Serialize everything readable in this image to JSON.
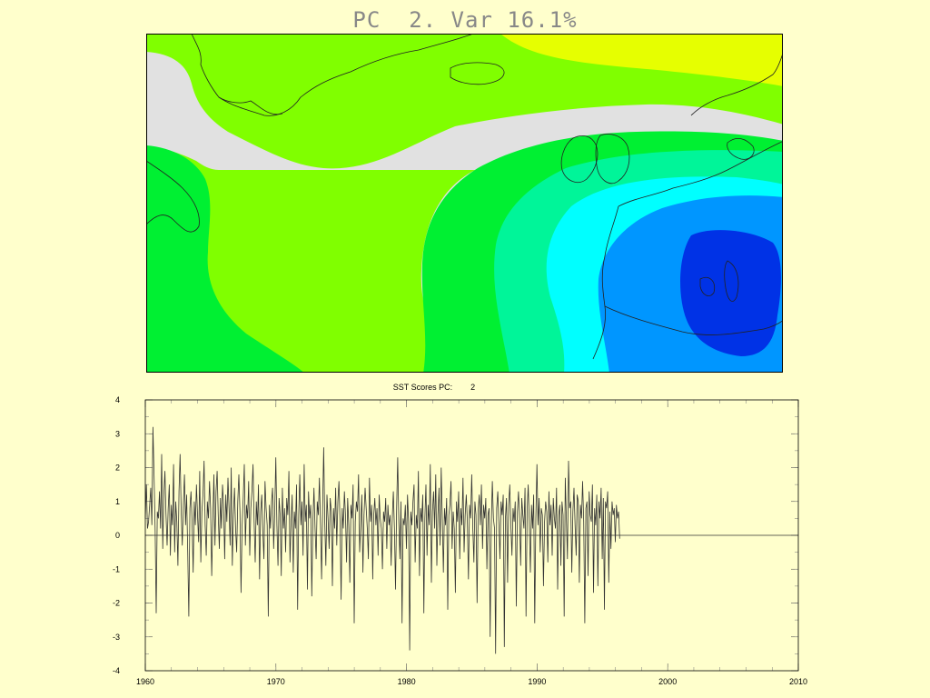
{
  "map": {
    "title": "PC  2. Var 16.1%",
    "colors": {
      "yellow": "#e6ff00",
      "lightgreen": "#80ff00",
      "grey": "#e1e1e1",
      "green": "#00f032",
      "teal": "#00f599",
      "cyan": "#00ffff",
      "blue": "#0096ff",
      "darkblue": "#0032e6",
      "coast": "#222222"
    }
  },
  "timeseries": {
    "title": "SST Scores PC:",
    "pc_number": "2"
  },
  "chart_data": {
    "type": "line",
    "title": "SST Scores PC:        2",
    "xlabel": "",
    "ylabel": "",
    "xlim": [
      1960,
      2010
    ],
    "ylim": [
      -4,
      4
    ],
    "x_ticks": [
      1960,
      1970,
      1980,
      1990,
      2000,
      2010
    ],
    "y_ticks": [
      4,
      3,
      2,
      1,
      0,
      -1,
      -2,
      -3,
      -4
    ],
    "grid": false,
    "zero_line": true,
    "series": [
      {
        "x_start": 1960.0,
        "x_step": 0.0833,
        "values": [
          0.5,
          1.5,
          0.2,
          0.4,
          0.9,
          1.4,
          0.3,
          3.2,
          1.8,
          0.2,
          -2.3,
          0.7,
          0.5,
          1.3,
          0.2,
          2.4,
          -0.4,
          1.2,
          1.9,
          0.6,
          -0.3,
          0.8,
          1.5,
          -0.6,
          0.9,
          0.3,
          2.1,
          -0.5,
          1.0,
          0.4,
          -0.9,
          1.3,
          2.4,
          0.7,
          -0.3,
          0.9,
          1.8,
          0.3,
          1.2,
          -0.5,
          -2.4,
          0.8,
          1.3,
          0.4,
          -1.1,
          1.0,
          0.3,
          1.5,
          0.6,
          -0.2,
          1.9,
          -0.8,
          0.7,
          1.2,
          2.2,
          0.3,
          -0.6,
          1.0,
          0.5,
          1.6,
          0.8,
          -1.2,
          0.4,
          1.8,
          -0.3,
          1.3,
          1.9,
          0.6,
          -0.4,
          1.1,
          0.2,
          1.5,
          0.9,
          -0.7,
          1.2,
          0.4,
          1.7,
          0.8,
          -0.3,
          2.0,
          -0.9,
          0.6,
          1.4,
          0.2,
          -0.5,
          1.0,
          1.8,
          0.7,
          -1.7,
          0.3,
          1.1,
          2.1,
          -0.3,
          0.9,
          0.5,
          1.6,
          -0.6,
          0.8,
          1.3,
          2.1,
          0.4,
          -0.8,
          1.0,
          0.3,
          1.5,
          -1.3,
          0.7,
          1.2,
          0.1,
          -0.7,
          1.6,
          0.8,
          0.3,
          -2.4,
          0.9,
          0.2,
          1.0,
          1.4,
          -0.4,
          0.7,
          2.3,
          0.3,
          -0.9,
          1.1,
          0.6,
          -1.2,
          1.4,
          0.2,
          0.8,
          -0.5,
          1.1,
          0.6,
          1.9,
          -0.8,
          0.4,
          1.2,
          -1.1,
          0.7,
          0.2,
          1.5,
          -2.2,
          0.6,
          1.8,
          0.3,
          1.0,
          -0.6,
          2.1,
          0.4,
          0.9,
          -1.6,
          1.3,
          0.5,
          0.9,
          -1.8,
          0.4,
          1.4,
          0.2,
          -0.7,
          1.0,
          0.6,
          1.7,
          0.3,
          -1.3,
          0.9,
          2.6,
          0.4,
          -0.9,
          1.2,
          0.5,
          -0.4,
          1.1,
          0.7,
          -1.5,
          0.8,
          0.2,
          1.4,
          -0.3,
          1.0,
          1.6,
          0.4,
          -1.9,
          0.8,
          0.2,
          1.3,
          0.6,
          -0.8,
          1.1,
          0.3,
          -1.4,
          0.9,
          0.5,
          1.5,
          -2.6,
          0.4,
          1.0,
          0.7,
          1.8,
          -0.5,
          0.3,
          1.2,
          -1.1,
          0.6,
          1.4,
          0.8,
          0.2,
          -0.7,
          1.7,
          0.4,
          0.9,
          -1.3,
          0.6,
          1.1,
          0.3,
          0.8,
          -0.6,
          1.2,
          0.5,
          0.2,
          -1.0,
          0.7,
          0.4,
          1.1,
          -0.4,
          0.9,
          0.3,
          0.6,
          -0.9,
          0.5,
          1.3,
          0.2,
          -1.6,
          0.8,
          2.3,
          0.4,
          -0.7,
          1.0,
          -2.6,
          0.5,
          0.3,
          0.9,
          -0.4,
          1.2,
          0.4,
          -3.4,
          0.7,
          0.3,
          1.0,
          1.5,
          -0.8,
          0.6,
          0.2,
          1.9,
          -1.2,
          0.8,
          0.4,
          1.2,
          -2.3,
          0.5,
          1.5,
          -0.6,
          0.9,
          0.3,
          2.1,
          -1.4,
          0.7,
          1.3,
          0.2,
          1.8,
          -0.9,
          0.6,
          1.4,
          -0.3,
          2.0,
          0.5,
          -1.1,
          0.8,
          0.3,
          1.1,
          -2.2,
          0.6,
          0.9,
          1.6,
          -0.4,
          0.7,
          0.2,
          -1.7,
          1.0,
          0.4,
          1.3,
          -0.7,
          0.8,
          0.3,
          1.7,
          -0.5,
          0.6,
          1.2,
          0.4,
          -1.3,
          0.9,
          0.5,
          1.8,
          0.2,
          -0.8,
          1.0,
          0.6,
          -2.0,
          0.7,
          1.2,
          0.3,
          1.5,
          -0.4,
          0.9,
          0.5,
          1.1,
          -1.0,
          0.6,
          0.8,
          -3.0,
          0.3,
          1.6,
          0.5,
          0.2,
          -3.5,
          0.8,
          1.3,
          0.4,
          -0.7,
          1.0,
          0.6,
          1.2,
          -3.3,
          0.5,
          1.1,
          -1.4,
          0.9,
          1.5,
          0.3,
          -0.6,
          0.8,
          0.4,
          1.0,
          -2.1,
          0.7,
          1.3,
          0.5,
          -0.9,
          1.1,
          0.6,
          0.2,
          1.4,
          -2.4,
          0.7,
          1.5,
          0.4,
          -1.1,
          0.9,
          0.2,
          1.2,
          -2.6,
          0.5,
          2.1,
          0.3,
          1.1,
          -0.5,
          0.8,
          0.6,
          -1.5,
          0.4,
          1.0,
          0.7,
          -0.8,
          1.3,
          0.3,
          0.9,
          -0.6,
          1.1,
          0.5,
          0.2,
          1.4,
          -1.6,
          0.6,
          0.9,
          -0.9,
          1.0,
          0.6,
          -2.4,
          1.7,
          0.5,
          -0.7,
          2.2,
          0.8,
          1.0,
          -1.1,
          0.7,
          1.4,
          0.3,
          -0.6,
          1.2,
          1.0,
          -1.4,
          0.9,
          0.5,
          1.6,
          0.4,
          -2.6,
          0.8,
          1.0,
          -1.2,
          1.3,
          0.6,
          0.4,
          1.5,
          -1.7,
          0.8,
          0.3,
          1.2,
          -1.5,
          1.0,
          0.5,
          1.4,
          -0.7,
          1.1,
          -2.2,
          1.0,
          0.8,
          1.3,
          -1.4,
          0.7,
          -0.4,
          1.0,
          0.6,
          0.8,
          -0.2,
          0.9,
          0.5,
          0.7,
          -0.1
        ]
      }
    ]
  }
}
